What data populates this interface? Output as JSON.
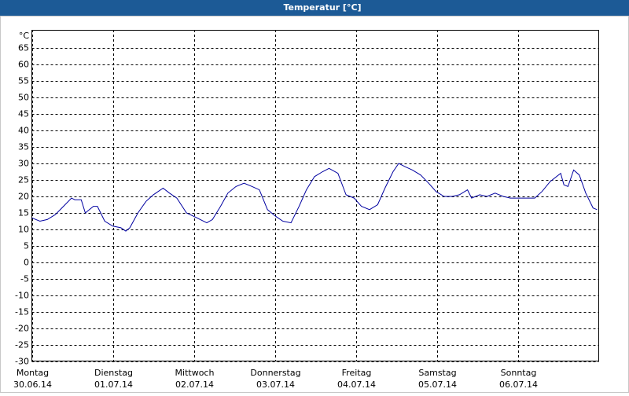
{
  "chart_data": {
    "type": "line",
    "title": "Temperatur [°C]",
    "y_unit": "°C",
    "xlim": [
      0,
      7
    ],
    "ylim": [
      -30,
      70
    ],
    "yticks": [
      -30,
      -25,
      -20,
      -15,
      -10,
      -5,
      0,
      5,
      10,
      15,
      20,
      25,
      30,
      35,
      40,
      45,
      50,
      55,
      60,
      65
    ],
    "xticks": [
      {
        "value": 0,
        "label": "Montag"
      },
      {
        "value": 1,
        "label": "Dienstag"
      },
      {
        "value": 2,
        "label": "Mittwoch"
      },
      {
        "value": 3,
        "label": "Donnerstag"
      },
      {
        "value": 4,
        "label": "Freitag"
      },
      {
        "value": 5,
        "label": "Samstag"
      },
      {
        "value": 6,
        "label": "Sonntag"
      }
    ],
    "xtick_dates": [
      "30.06.14",
      "01.07.14",
      "02.07.14",
      "03.07.14",
      "04.07.14",
      "05.07.14",
      "06.07.14"
    ],
    "grid": true,
    "color": "#0000a0",
    "x": [
      0,
      0.1,
      0.19,
      0.29,
      0.39,
      0.49,
      0.53,
      0.61,
      0.66,
      0.76,
      0.81,
      0.9,
      1.0,
      1.1,
      1.16,
      1.21,
      1.31,
      1.41,
      1.5,
      1.62,
      1.7,
      1.79,
      1.91,
      2.04,
      2.16,
      2.23,
      2.33,
      2.42,
      2.52,
      2.62,
      2.72,
      2.81,
      2.91,
      3.01,
      3.1,
      3.2,
      3.3,
      3.39,
      3.49,
      3.59,
      3.67,
      3.78,
      3.88,
      3.98,
      4.07,
      4.17,
      4.27,
      4.36,
      4.46,
      4.53,
      4.61,
      4.7,
      4.8,
      4.9,
      4.99,
      5.09,
      5.19,
      5.28,
      5.38,
      5.43,
      5.53,
      5.62,
      5.72,
      5.82,
      5.91,
      6.01,
      6.11,
      6.21,
      6.3,
      6.4,
      6.53,
      6.57,
      6.62,
      6.69,
      6.76,
      6.84,
      6.93,
      6.98
    ],
    "values": [
      13.5,
      12.5,
      13,
      14.5,
      17,
      19.5,
      19,
      19,
      15,
      17,
      17,
      12.5,
      11,
      10.5,
      9.5,
      10.5,
      15,
      18.5,
      20.5,
      22.5,
      21,
      19.5,
      15,
      13.5,
      12,
      13,
      17,
      21,
      23,
      24,
      23,
      22,
      16,
      14,
      12.5,
      12,
      17,
      22,
      26,
      27.5,
      28.5,
      27,
      20.5,
      19.5,
      17,
      16,
      17.5,
      22.5,
      27.5,
      30,
      29,
      28,
      26.5,
      24,
      21.5,
      20,
      20,
      20.5,
      22,
      19.5,
      20.5,
      20,
      21,
      20,
      19.5,
      19.5,
      19.5,
      19.5,
      21.5,
      24.5,
      27,
      23.5,
      23,
      28,
      26.5,
      21,
      16.5,
      16
    ]
  }
}
